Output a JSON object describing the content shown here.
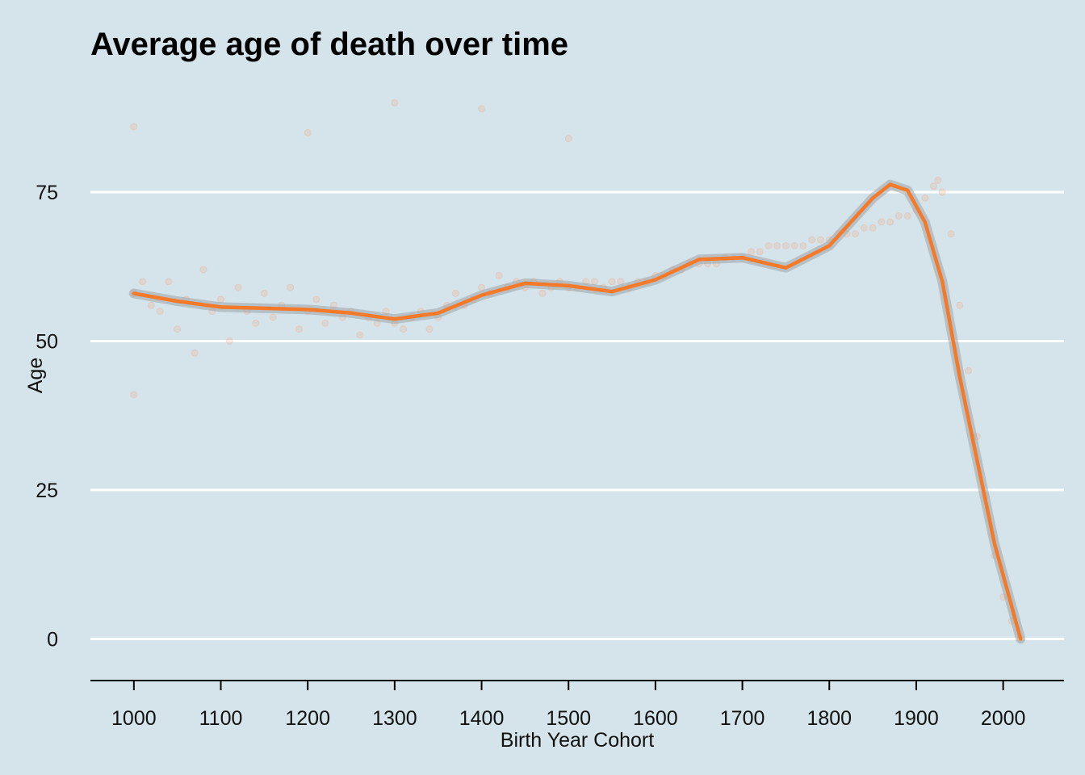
{
  "chart_data": {
    "type": "scatter",
    "title": "Average age of death over time",
    "xlabel": "Birth Year Cohort",
    "ylabel": "Age",
    "xlim": [
      950,
      2070
    ],
    "ylim": [
      -7,
      91
    ],
    "x_ticks": [
      1000,
      1100,
      1200,
      1300,
      1400,
      1500,
      1600,
      1700,
      1800,
      1900,
      2000
    ],
    "y_ticks": [
      0,
      25,
      50,
      75
    ],
    "grid": "horizontal",
    "colors": {
      "background": "#d5e4eb",
      "points": "#f4a27a",
      "smooth_line": "#f47a2a",
      "confidence_band": "#9aa4aa",
      "grid": "#ffffff",
      "axis": "#000000"
    },
    "series": [
      {
        "type": "scatter",
        "description_points": [
          [
            1000,
            58
          ],
          [
            1000,
            86
          ],
          [
            1000,
            41
          ],
          [
            1010,
            60
          ],
          [
            1020,
            56
          ],
          [
            1030,
            55
          ],
          [
            1040,
            60
          ],
          [
            1050,
            52
          ],
          [
            1060,
            57
          ],
          [
            1070,
            48
          ],
          [
            1080,
            62
          ],
          [
            1090,
            55
          ],
          [
            1100,
            57
          ],
          [
            1110,
            50
          ],
          [
            1120,
            59
          ],
          [
            1130,
            55
          ],
          [
            1140,
            53
          ],
          [
            1150,
            58
          ],
          [
            1160,
            54
          ],
          [
            1170,
            56
          ],
          [
            1180,
            59
          ],
          [
            1190,
            52
          ],
          [
            1200,
            55
          ],
          [
            1200,
            85
          ],
          [
            1210,
            57
          ],
          [
            1220,
            53
          ],
          [
            1230,
            56
          ],
          [
            1240,
            54
          ],
          [
            1250,
            55
          ],
          [
            1260,
            51
          ],
          [
            1270,
            54
          ],
          [
            1280,
            53
          ],
          [
            1290,
            55
          ],
          [
            1300,
            53
          ],
          [
            1300,
            90
          ],
          [
            1310,
            52
          ],
          [
            1320,
            54
          ],
          [
            1330,
            55
          ],
          [
            1340,
            52
          ],
          [
            1350,
            54
          ],
          [
            1360,
            56
          ],
          [
            1370,
            58
          ],
          [
            1380,
            56
          ],
          [
            1390,
            57
          ],
          [
            1400,
            59
          ],
          [
            1400,
            89
          ],
          [
            1410,
            58
          ],
          [
            1420,
            61
          ],
          [
            1430,
            59
          ],
          [
            1440,
            60
          ],
          [
            1450,
            59
          ],
          [
            1460,
            60
          ],
          [
            1470,
            58
          ],
          [
            1480,
            59
          ],
          [
            1490,
            60
          ],
          [
            1500,
            59
          ],
          [
            1500,
            84
          ],
          [
            1510,
            59
          ],
          [
            1520,
            60
          ],
          [
            1530,
            60
          ],
          [
            1540,
            59
          ],
          [
            1550,
            60
          ],
          [
            1560,
            60
          ],
          [
            1570,
            59
          ],
          [
            1580,
            60
          ],
          [
            1590,
            60
          ],
          [
            1600,
            61
          ],
          [
            1610,
            61
          ],
          [
            1620,
            62
          ],
          [
            1630,
            62
          ],
          [
            1640,
            63
          ],
          [
            1650,
            63
          ],
          [
            1660,
            63
          ],
          [
            1670,
            63
          ],
          [
            1680,
            64
          ],
          [
            1690,
            64
          ],
          [
            1700,
            64
          ],
          [
            1710,
            65
          ],
          [
            1720,
            65
          ],
          [
            1730,
            66
          ],
          [
            1740,
            66
          ],
          [
            1750,
            66
          ],
          [
            1760,
            66
          ],
          [
            1770,
            66
          ],
          [
            1780,
            67
          ],
          [
            1790,
            67
          ],
          [
            1800,
            67
          ],
          [
            1810,
            68
          ],
          [
            1820,
            68
          ],
          [
            1830,
            68
          ],
          [
            1840,
            69
          ],
          [
            1850,
            69
          ],
          [
            1860,
            70
          ],
          [
            1870,
            70
          ],
          [
            1880,
            71
          ],
          [
            1890,
            71
          ],
          [
            1900,
            72
          ],
          [
            1910,
            74
          ],
          [
            1920,
            76
          ],
          [
            1925,
            77
          ],
          [
            1930,
            75
          ],
          [
            1940,
            68
          ],
          [
            1950,
            56
          ],
          [
            1960,
            45
          ],
          [
            1970,
            34
          ],
          [
            1980,
            24
          ],
          [
            1990,
            14
          ],
          [
            2000,
            7
          ],
          [
            2010,
            3
          ],
          [
            2020,
            0
          ]
        ]
      },
      {
        "type": "line",
        "description_smooth": [
          [
            1000,
            58
          ],
          [
            1050,
            56.7
          ],
          [
            1100,
            55.7
          ],
          [
            1150,
            55.5
          ],
          [
            1200,
            55.3
          ],
          [
            1250,
            54.7
          ],
          [
            1300,
            53.7
          ],
          [
            1350,
            54.7
          ],
          [
            1400,
            57.7
          ],
          [
            1450,
            59.7
          ],
          [
            1500,
            59.3
          ],
          [
            1550,
            58.3
          ],
          [
            1600,
            60.3
          ],
          [
            1650,
            63.7
          ],
          [
            1700,
            64.0
          ],
          [
            1750,
            62.3
          ],
          [
            1800,
            66.0
          ],
          [
            1850,
            74.0
          ],
          [
            1870,
            76.3
          ],
          [
            1890,
            75.3
          ],
          [
            1910,
            70.0
          ],
          [
            1930,
            60.0
          ],
          [
            1950,
            44.0
          ],
          [
            1970,
            30.0
          ],
          [
            1990,
            16.0
          ],
          [
            2020,
            0
          ]
        ]
      }
    ]
  }
}
